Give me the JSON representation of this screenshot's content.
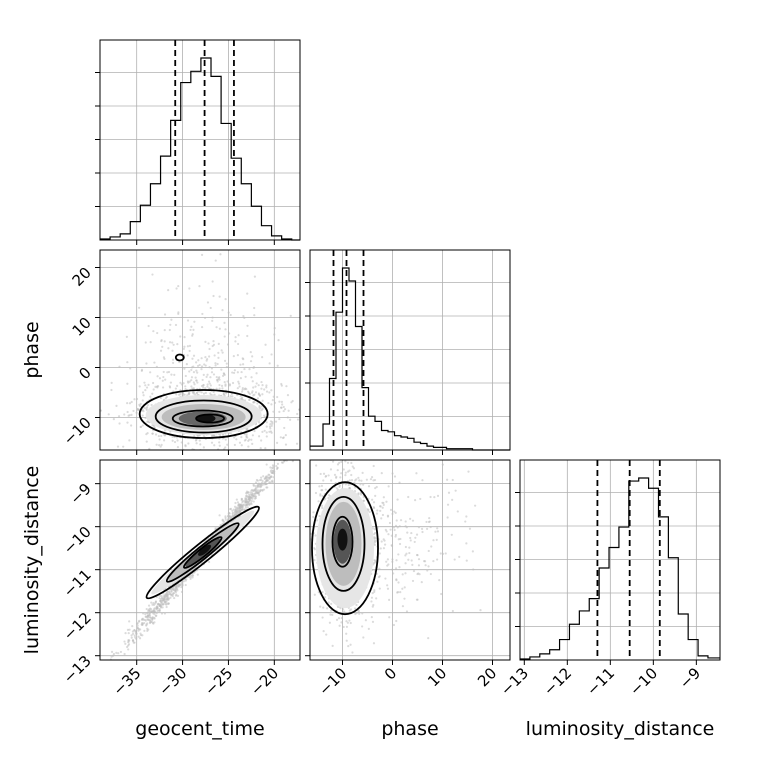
{
  "chart_data": {
    "type": "corner",
    "parameters": [
      "geocent_time",
      "phase",
      "luminosity_distance"
    ],
    "axes": {
      "geocent_time": {
        "label": "geocent_time",
        "range": [
          -39,
          -17.2
        ],
        "ticks": [
          -35,
          -30,
          -25,
          -20
        ],
        "tick_labels": [
          "−35",
          "−30",
          "−25",
          "−20"
        ]
      },
      "phase": {
        "label": "phase",
        "range": [
          -16.5,
          23.5
        ],
        "ticks": [
          -10,
          0,
          10,
          20
        ],
        "tick_labels": [
          "−10",
          "0",
          "10",
          "20"
        ]
      },
      "luminosity_distance": {
        "label": "luminosity_distance",
        "range": [
          -13.1,
          -8.45
        ],
        "ticks": [
          -13,
          -12,
          -11,
          -10,
          -9
        ],
        "tick_labels": [
          "−13",
          "−12",
          "−11",
          "−10",
          "−9"
        ]
      }
    },
    "histograms": [
      {
        "parameter": "geocent_time",
        "bin_edges": [
          -39,
          -37.9,
          -36.8,
          -35.7,
          -34.6,
          -33.5,
          -32.4,
          -31.3,
          -30.2,
          -29.1,
          -28.0,
          -26.9,
          -25.8,
          -24.7,
          -23.6,
          -22.5,
          -21.4,
          -20.3,
          -19.2,
          -18.1,
          -17.2
        ],
        "counts": [
          1,
          3,
          6,
          18,
          34,
          55,
          82,
          117,
          154,
          165,
          178,
          160,
          114,
          80,
          55,
          33,
          14,
          4,
          1,
          0
        ],
        "quantiles": [
          -30.8,
          -27.6,
          -24.4
        ]
      },
      {
        "parameter": "phase",
        "bin_edges": [
          -16.5,
          -15.2,
          -13.9,
          -12.6,
          -11.3,
          -10.0,
          -8.7,
          -7.4,
          -6.1,
          -4.8,
          -3.5,
          -2.2,
          -0.9,
          0.4,
          1.7,
          3.0,
          4.3,
          5.6,
          6.9,
          8.2,
          9.5,
          10.8,
          12.1,
          13.4,
          14.7,
          16.0,
          17.3,
          18.6,
          19.9,
          21.2,
          23.5
        ],
        "counts": [
          3,
          3,
          20,
          55,
          106,
          140,
          130,
          95,
          48,
          26,
          22,
          15,
          14,
          11,
          10,
          9,
          6,
          5,
          3,
          2,
          2,
          1,
          1,
          1,
          1,
          0,
          0,
          0,
          0,
          0
        ],
        "quantiles": [
          -11.8,
          -9.2,
          -5.8
        ]
      },
      {
        "parameter": "luminosity_distance",
        "bin_edges": [
          -13.1,
          -12.87,
          -12.64,
          -12.41,
          -12.18,
          -11.95,
          -11.72,
          -11.49,
          -11.26,
          -11.03,
          -10.8,
          -10.57,
          -10.34,
          -10.11,
          -9.88,
          -9.65,
          -9.42,
          -9.19,
          -8.96,
          -8.73,
          -8.45
        ],
        "counts": [
          1,
          3,
          6,
          10,
          20,
          35,
          48,
          60,
          90,
          110,
          130,
          175,
          178,
          168,
          140,
          100,
          45,
          20,
          4,
          2
        ],
        "quantiles": [
          -11.3,
          -10.55,
          -9.85
        ]
      }
    ],
    "scatter_pairs": [
      {
        "x": "geocent_time",
        "y": "phase",
        "density_peak": [
          -27.5,
          -10
        ],
        "small_island": [
          -30.3,
          2
        ]
      },
      {
        "x": "geocent_time",
        "y": "luminosity_distance",
        "density_peak": [
          -27.5,
          -10.55
        ],
        "correlation": "strong positive"
      },
      {
        "x": "phase",
        "y": "luminosity_distance",
        "density_peak": [
          -10,
          -10.4
        ]
      }
    ],
    "grid": true,
    "colors": {
      "line": "#000000",
      "grid": "#b0b0b0",
      "points": "#bdbdbd"
    }
  }
}
